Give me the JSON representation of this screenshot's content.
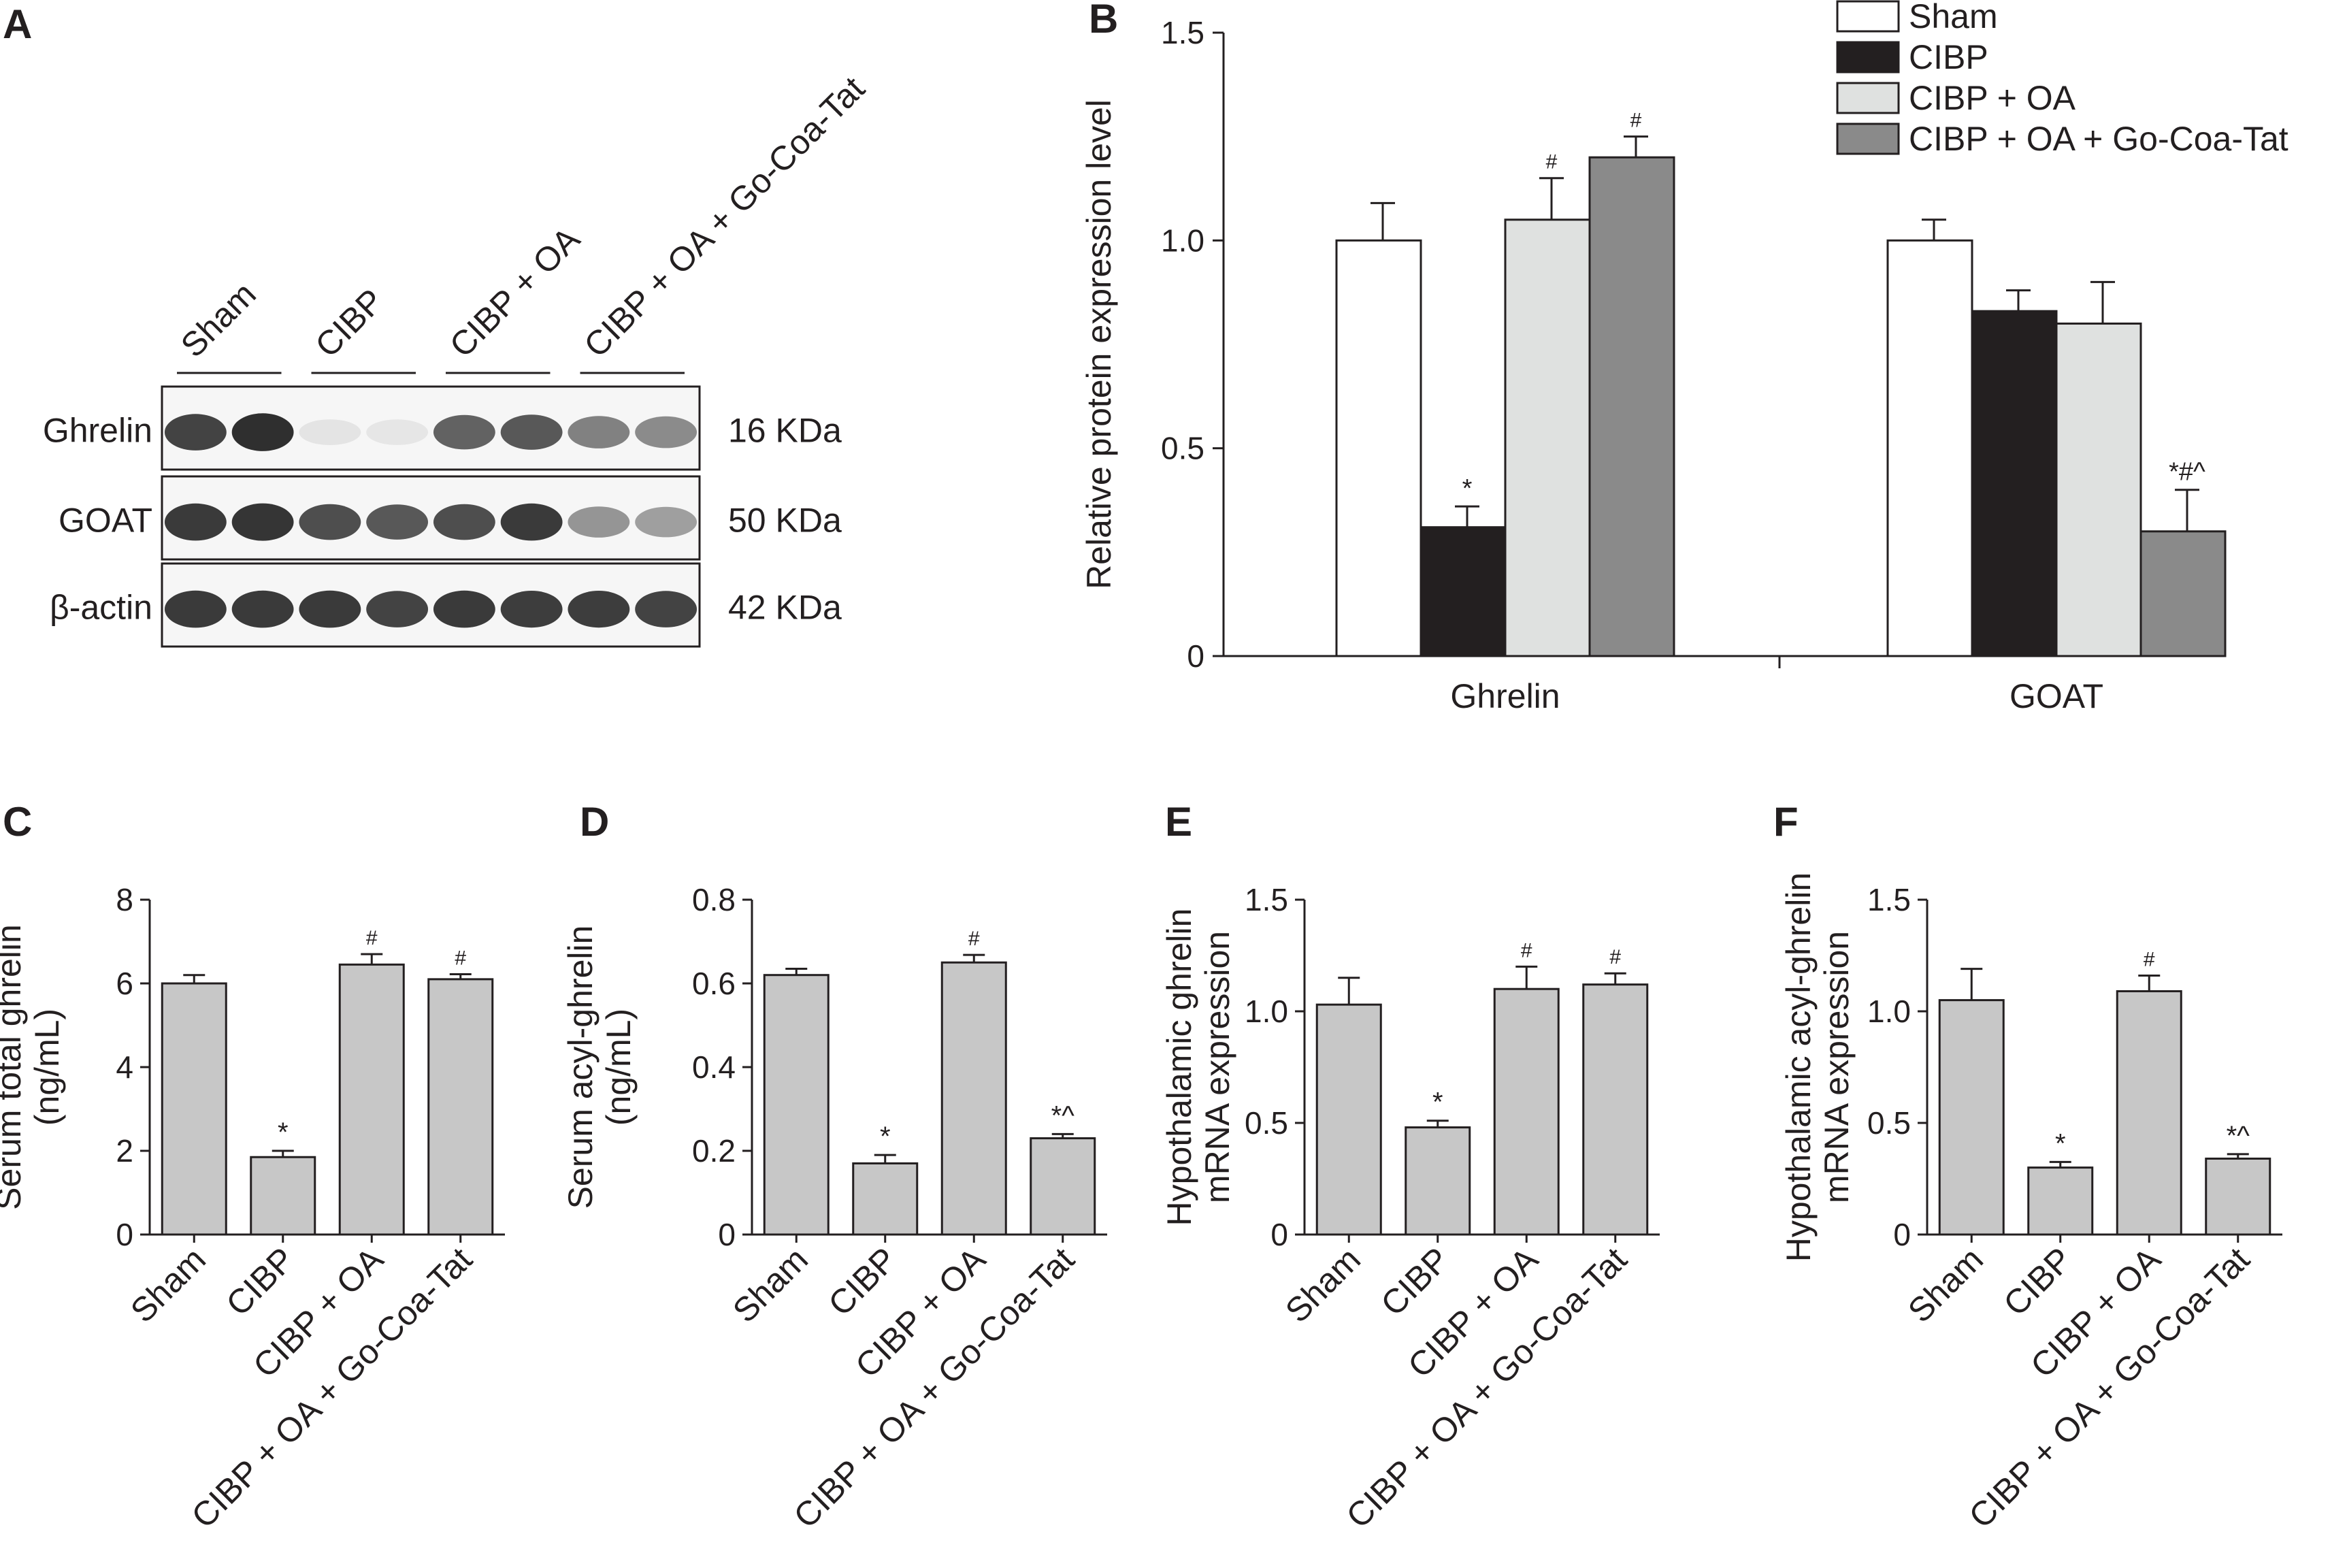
{
  "colors": {
    "ink": "#231f20",
    "sham": "#ffffff",
    "cibp": "#231f20",
    "cibp_oa": "#dfe1e0",
    "cibp_oa_gocoatat": "#8a8a8a",
    "bar_gray": "#c7c7c7"
  },
  "panel_a": {
    "letter": "A",
    "lane_groups": [
      "Sham",
      "CIBP",
      "CIBP + OA",
      "CIBP + OA + Go-Coa-Tat"
    ],
    "blots": [
      {
        "protein": "Ghrelin",
        "size": "16 KDa"
      },
      {
        "protein": "GOAT",
        "size": "50 KDa"
      },
      {
        "protein": "β-actin",
        "size": "42 KDa"
      }
    ],
    "band_intensity": {
      "Ghrelin": [
        0.85,
        0.95,
        0.06,
        0.05,
        0.7,
        0.75,
        0.55,
        0.5
      ],
      "GOAT": [
        0.9,
        0.92,
        0.8,
        0.75,
        0.8,
        0.9,
        0.45,
        0.4
      ],
      "β-actin": [
        0.9,
        0.9,
        0.9,
        0.85,
        0.9,
        0.88,
        0.88,
        0.85
      ]
    }
  },
  "chart_data": [
    {
      "panel": "B",
      "type": "bar",
      "ylabel": "Relative protein expression level",
      "ylim": [
        0,
        1.5
      ],
      "yticks": [
        "0",
        "0.5",
        "1.0",
        "1.5"
      ],
      "categories": [
        "Ghrelin",
        "GOAT"
      ],
      "legend_position": "top-right",
      "series": [
        {
          "name": "Sham",
          "values": [
            1.0,
            1.0
          ],
          "errors": [
            0.09,
            0.05
          ],
          "annotations": [
            "",
            ""
          ]
        },
        {
          "name": "CIBP",
          "values": [
            0.31,
            0.83
          ],
          "errors": [
            0.05,
            0.05
          ],
          "annotations": [
            "*",
            ""
          ]
        },
        {
          "name": "CIBP + OA",
          "values": [
            1.05,
            0.8
          ],
          "errors": [
            0.1,
            0.1
          ],
          "annotations": [
            "#",
            ""
          ]
        },
        {
          "name": "CIBP + OA + Go-Coa-Tat",
          "values": [
            1.2,
            0.3
          ],
          "errors": [
            0.05,
            0.1
          ],
          "annotations": [
            "#",
            "*#^"
          ]
        }
      ]
    },
    {
      "panel": "C",
      "type": "bar",
      "ylabel": "Serum total ghrelin (ng/mL)",
      "ylim": [
        0,
        8
      ],
      "yticks": [
        "0",
        "2",
        "4",
        "6",
        "8"
      ],
      "categories": [
        "Sham",
        "CIBP",
        "CIBP + OA",
        "CIBP + OA + Go-Coa-Tat"
      ],
      "values": [
        6.0,
        1.85,
        6.45,
        6.1
      ],
      "errors": [
        0.2,
        0.15,
        0.25,
        0.12
      ],
      "annotations": [
        "",
        "*",
        "#",
        "#"
      ]
    },
    {
      "panel": "D",
      "type": "bar",
      "ylabel": "Serum acyl-ghrelin (ng/mL)",
      "ylim": [
        0,
        0.8
      ],
      "yticks": [
        "0",
        "0.2",
        "0.4",
        "0.6",
        "0.8"
      ],
      "categories": [
        "Sham",
        "CIBP",
        "CIBP + OA",
        "CIBP + OA + Go-Coa-Tat"
      ],
      "values": [
        0.62,
        0.17,
        0.65,
        0.23
      ],
      "errors": [
        0.015,
        0.02,
        0.018,
        0.01
      ],
      "annotations": [
        "",
        "*",
        "#",
        "*^"
      ]
    },
    {
      "panel": "E",
      "type": "bar",
      "ylabel": "Hypothalamic ghrelin mRNA expression",
      "ylim": [
        0,
        1.5
      ],
      "yticks": [
        "0",
        "0.5",
        "1.0",
        "1.5"
      ],
      "categories": [
        "Sham",
        "CIBP",
        "CIBP + OA",
        "CIBP + OA + Go-Coa-Tat"
      ],
      "values": [
        1.03,
        0.48,
        1.1,
        1.12
      ],
      "errors": [
        0.12,
        0.03,
        0.1,
        0.05
      ],
      "annotations": [
        "",
        "*",
        "#",
        "#"
      ]
    },
    {
      "panel": "F",
      "type": "bar",
      "ylabel": "Hypothalamic acyl-ghrelin mRNA expression",
      "ylim": [
        0,
        1.5
      ],
      "yticks": [
        "0",
        "0.5",
        "1.0",
        "1.5"
      ],
      "categories": [
        "Sham",
        "CIBP",
        "CIBP + OA",
        "CIBP + OA + Go-Coa-Tat"
      ],
      "values": [
        1.05,
        0.3,
        1.09,
        0.34
      ],
      "errors": [
        0.14,
        0.025,
        0.07,
        0.02
      ],
      "annotations": [
        "",
        "*",
        "#",
        "*^"
      ]
    }
  ]
}
